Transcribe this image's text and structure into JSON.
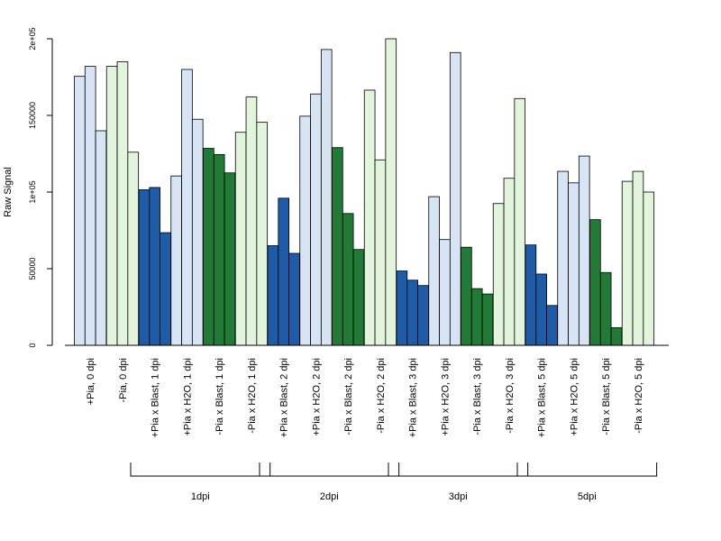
{
  "chart_data": {
    "type": "bar",
    "title": "",
    "xlabel": "",
    "ylabel": "Raw Signal",
    "ylim": [
      0,
      200000
    ],
    "y_ticks": [
      0,
      50000,
      100000,
      150000,
      200000
    ],
    "y_tick_labels": [
      "0",
      "50000",
      "1e+05",
      "150000",
      "2e+05"
    ],
    "grid": false,
    "legend": "none",
    "colors": {
      "light_blue": "#d6e4f4",
      "light_green": "#e2f5dc",
      "dark_blue": "#1f5ca8",
      "dark_green": "#217a35",
      "stroke": "#000000"
    },
    "categories": [
      {
        "label": "+Pia, 0 dpi",
        "color": "light_blue",
        "values": [
          175500,
          182000,
          140000
        ]
      },
      {
        "label": "-Pia, 0 dpi",
        "color": "light_green",
        "values": [
          182000,
          185000,
          126000
        ]
      },
      {
        "label": "+Pia x Blast, 1 dpi",
        "color": "dark_blue",
        "values": [
          101500,
          103000,
          73500
        ]
      },
      {
        "label": "+Pia x H2O, 1 dpi",
        "color": "light_blue",
        "values": [
          110500,
          180000,
          147500
        ]
      },
      {
        "label": "-Pia x Blast, 1 dpi",
        "color": "dark_green",
        "values": [
          128500,
          124500,
          112500
        ]
      },
      {
        "label": "-Pia x H2O, 1 dpi",
        "color": "light_green",
        "values": [
          139000,
          162000,
          145500
        ]
      },
      {
        "label": "+Pia x Blast, 2 dpi",
        "color": "dark_blue",
        "values": [
          65000,
          96000,
          60000
        ]
      },
      {
        "label": "+Pia x H2O, 2 dpi",
        "color": "light_blue",
        "values": [
          149500,
          164000,
          193000
        ]
      },
      {
        "label": "-Pia x Blast, 2 dpi",
        "color": "dark_green",
        "values": [
          129000,
          86000,
          62500
        ]
      },
      {
        "label": "-Pia x H2O, 2 dpi",
        "color": "light_green",
        "values": [
          166500,
          121000,
          200000
        ]
      },
      {
        "label": "+Pia x Blast, 3 dpi",
        "color": "dark_blue",
        "values": [
          48500,
          42500,
          39000
        ]
      },
      {
        "label": "+Pia x H2O, 3 dpi",
        "color": "light_blue",
        "values": [
          97000,
          69000,
          191000
        ]
      },
      {
        "label": "-Pia x Blast, 3 dpi",
        "color": "dark_green",
        "values": [
          64000,
          37000,
          33500
        ]
      },
      {
        "label": "-Pia x H2O, 3 dpi",
        "color": "light_green",
        "values": [
          92500,
          109000,
          161000
        ]
      },
      {
        "label": "+Pia x Blast, 5 dpi",
        "color": "dark_blue",
        "values": [
          65500,
          46500,
          26000
        ]
      },
      {
        "label": "+Pia x H2O, 5 dpi",
        "color": "light_blue",
        "values": [
          113500,
          106000,
          123500
        ]
      },
      {
        "label": "-Pia x Blast, 5 dpi",
        "color": "dark_green",
        "values": [
          82000,
          47500,
          11500
        ]
      },
      {
        "label": "-Pia x H2O, 5 dpi",
        "color": "light_green",
        "values": [
          107000,
          113500,
          100000
        ]
      }
    ],
    "groups": [
      {
        "label": "1dpi",
        "from_category": 2,
        "to_category": 5
      },
      {
        "label": "2dpi",
        "from_category": 6,
        "to_category": 9
      },
      {
        "label": "3dpi",
        "from_category": 10,
        "to_category": 13
      },
      {
        "label": "5dpi",
        "from_category": 14,
        "to_category": 17
      }
    ]
  }
}
